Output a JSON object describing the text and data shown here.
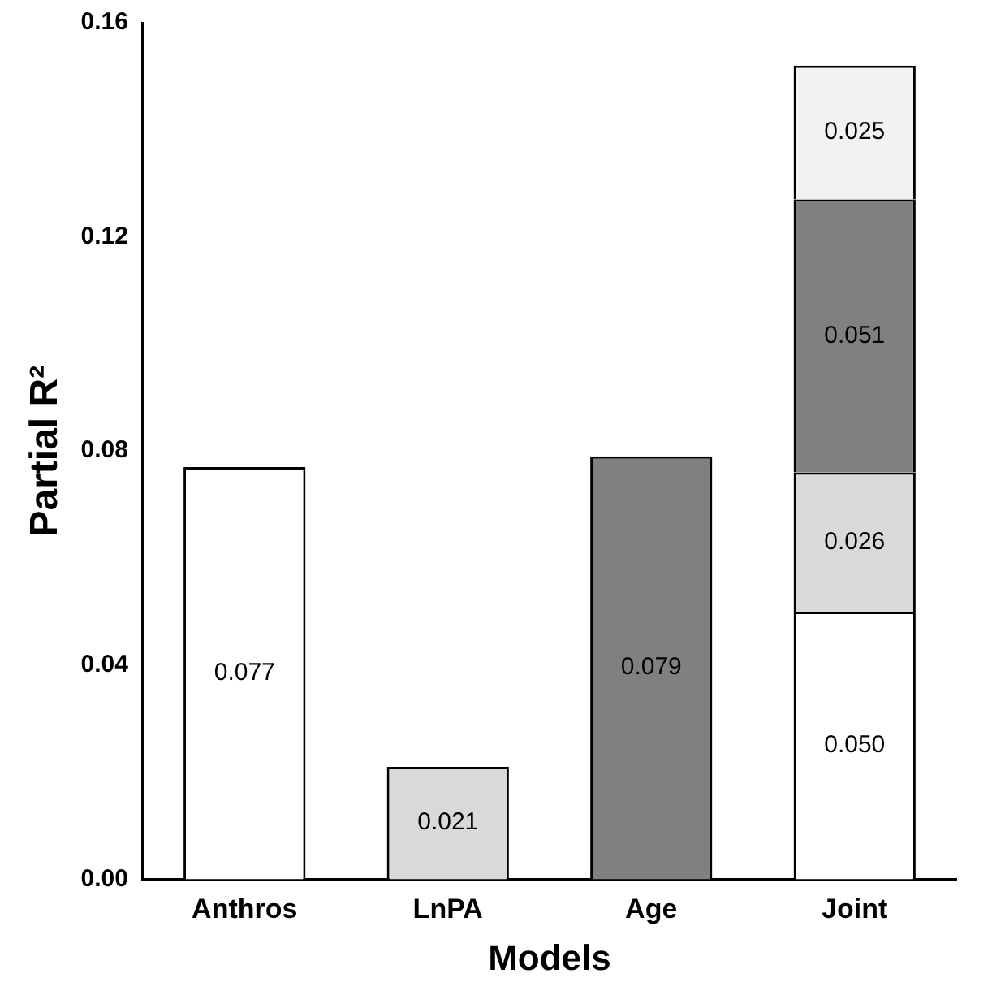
{
  "chart_data": {
    "type": "bar",
    "stacked": true,
    "xlabel": "Models",
    "ylabel": "Partial R²",
    "categories": [
      "Anthros",
      "LnPA",
      "Age",
      "Joint"
    ],
    "series": [
      {
        "color": "#ffffff",
        "values": [
          0.077,
          null,
          null,
          0.05
        ],
        "value_labels": [
          "0.077",
          null,
          null,
          "0.050"
        ]
      },
      {
        "color": "#d9d9d9",
        "values": [
          null,
          0.021,
          null,
          0.026
        ],
        "value_labels": [
          null,
          "0.021",
          null,
          "0.026"
        ]
      },
      {
        "color": "#808080",
        "values": [
          null,
          null,
          0.079,
          0.051
        ],
        "value_labels": [
          null,
          null,
          "0.079",
          "0.051"
        ]
      },
      {
        "color": "#f2f2f2",
        "values": [
          null,
          null,
          null,
          0.025
        ],
        "value_labels": [
          null,
          null,
          null,
          "0.025"
        ]
      }
    ],
    "ylim": [
      0,
      0.16
    ],
    "yticks": [
      {
        "value": 0,
        "label": "0.00"
      },
      {
        "value": 0.04,
        "label": "0.04"
      },
      {
        "value": 0.08,
        "label": "0.08"
      },
      {
        "value": 0.12,
        "label": "0.12"
      },
      {
        "value": 0.16,
        "label": "0.16"
      }
    ],
    "grid": false,
    "legend": false
  }
}
